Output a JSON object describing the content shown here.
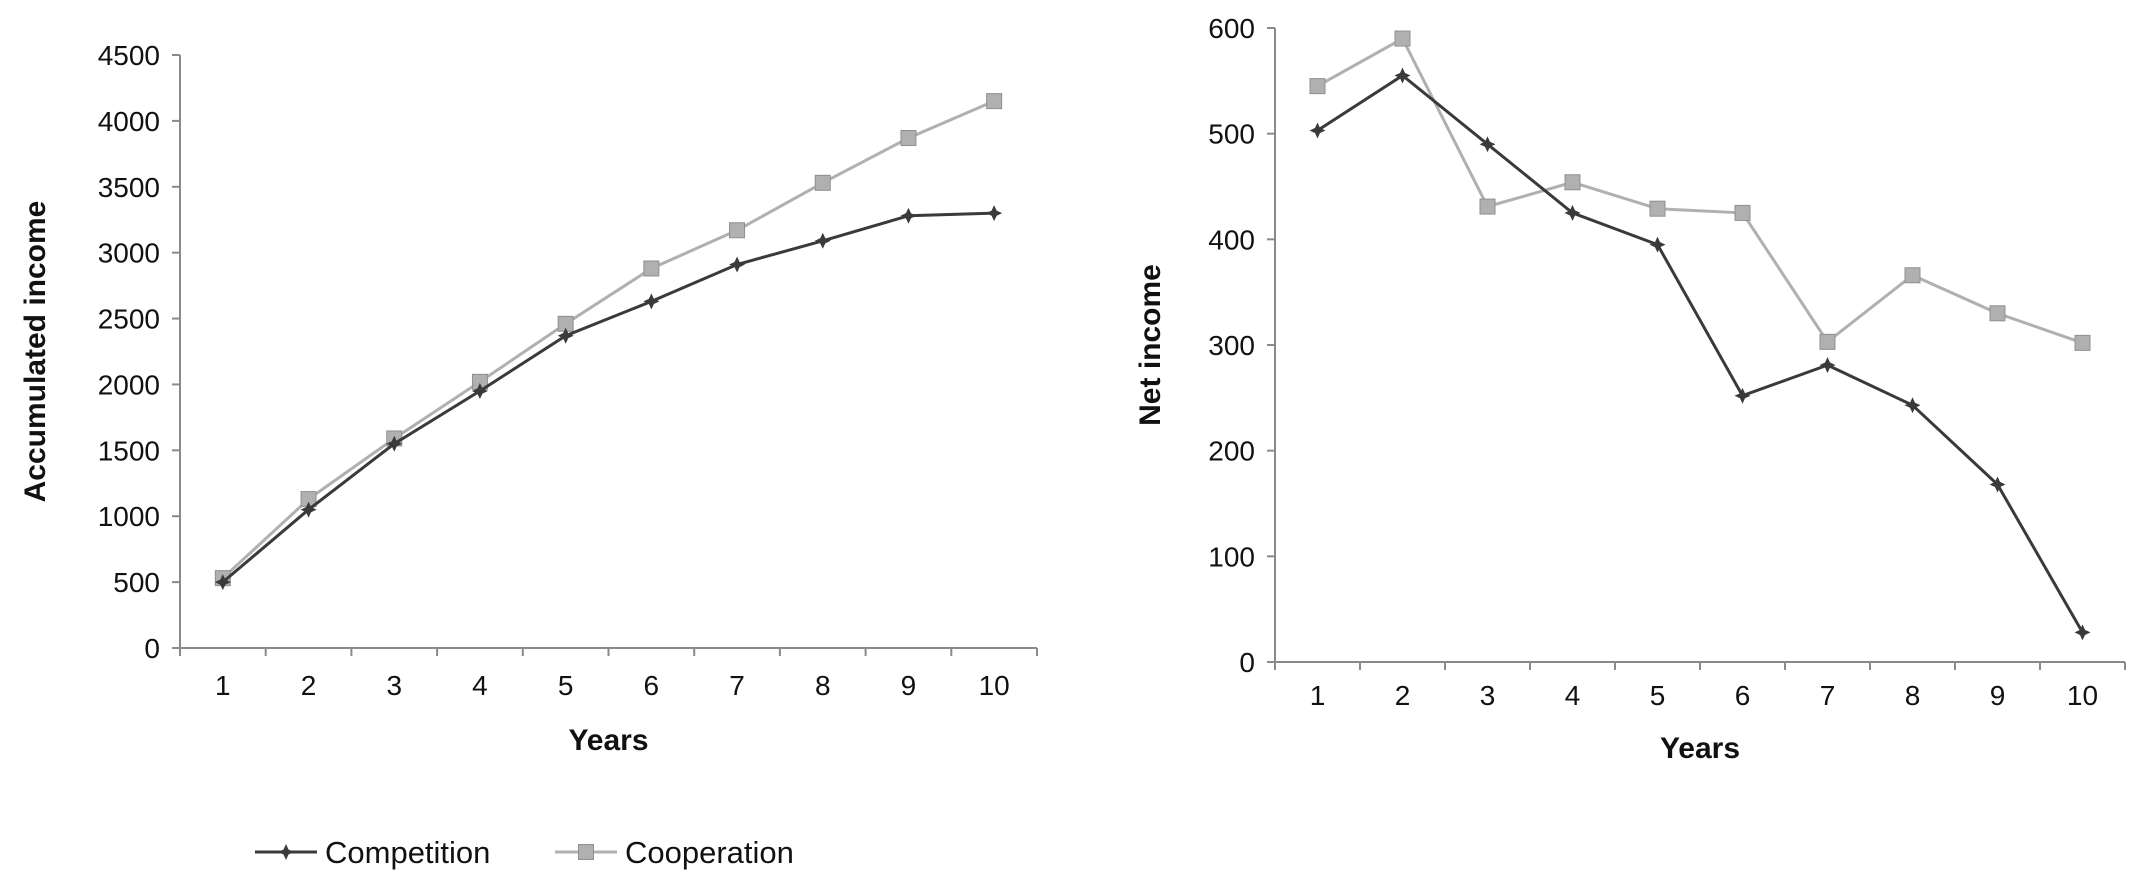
{
  "chart_data": [
    {
      "type": "line",
      "ylabel": "Accumulated income",
      "xlabel": "Years",
      "categories": [
        "1",
        "2",
        "3",
        "4",
        "5",
        "6",
        "7",
        "8",
        "9",
        "10"
      ],
      "yticks": [
        "0",
        "500",
        "1000",
        "1500",
        "2000",
        "2500",
        "3000",
        "3500",
        "4000",
        "4500"
      ],
      "ylim": [
        0,
        4500
      ],
      "grid": false,
      "series": [
        {
          "name": "Competition",
          "color": "#3a3a3a",
          "marker": "star",
          "values": [
            500,
            1050,
            1550,
            1950,
            2370,
            2630,
            2910,
            3090,
            3280,
            3300
          ]
        },
        {
          "name": "Cooperation",
          "color": "#b0b0b0",
          "marker": "square",
          "values": [
            530,
            1130,
            1590,
            2020,
            2460,
            2880,
            3170,
            3530,
            3870,
            4150
          ]
        }
      ]
    },
    {
      "type": "line",
      "ylabel": "Net income",
      "xlabel": "Years",
      "categories": [
        "1",
        "2",
        "3",
        "4",
        "5",
        "6",
        "7",
        "8",
        "9",
        "10"
      ],
      "yticks": [
        "0",
        "100",
        "200",
        "300",
        "400",
        "500",
        "600"
      ],
      "ylim": [
        0,
        600
      ],
      "grid": false,
      "series": [
        {
          "name": "Competition",
          "color": "#3a3a3a",
          "marker": "star",
          "values": [
            503,
            555,
            490,
            425,
            395,
            252,
            281,
            243,
            168,
            28
          ]
        },
        {
          "name": "Cooperation",
          "color": "#b0b0b0",
          "marker": "square",
          "values": [
            545,
            590,
            431,
            454,
            429,
            425,
            303,
            366,
            330,
            302
          ]
        }
      ]
    }
  ],
  "legend": {
    "placement": "bottom-left",
    "items": [
      {
        "label": "Competition",
        "color": "#3a3a3a",
        "marker": "star"
      },
      {
        "label": "Cooperation",
        "color": "#b0b0b0",
        "marker": "square"
      }
    ]
  }
}
